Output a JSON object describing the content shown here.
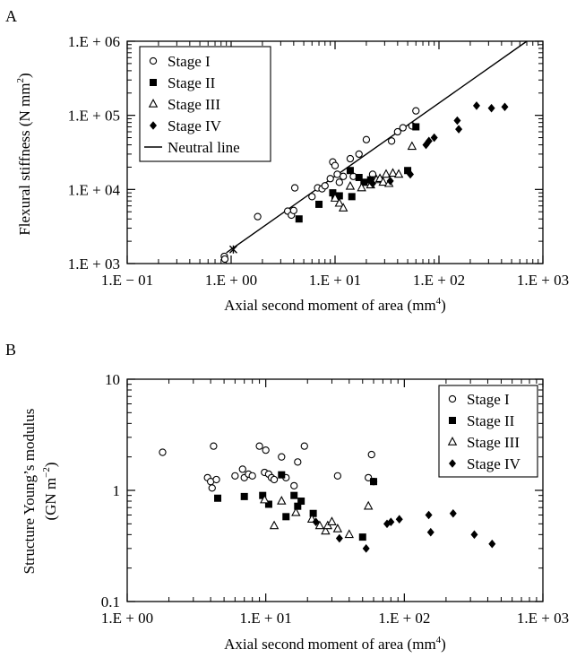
{
  "chart_data": [
    {
      "panel_label": "A",
      "type": "scatter",
      "scale": "log-log",
      "xlim": [
        0.1,
        1000
      ],
      "ylim": [
        1000,
        1000000
      ],
      "xticks": [
        0.1,
        1,
        10,
        100,
        1000
      ],
      "xtick_labels": [
        "1.E − 01",
        "1.E + 00",
        "1.E + 01",
        "1.E + 02",
        "1.E + 03"
      ],
      "yticks": [
        1000,
        10000,
        100000,
        1000000
      ],
      "ytick_labels": [
        "1.E + 03",
        "1.E + 04",
        "1.E + 05",
        "1.E + 06"
      ],
      "xlabel": "Axial second moment of area (mm",
      "xlabel_sup": "4",
      "xlabel_end": ")",
      "ylabel": "Flexural stiffness (N mm",
      "ylabel_sup": "2",
      "ylabel_end": ")",
      "legend_position": "top-left",
      "line": {
        "name": "Neutral line",
        "x": [
          0.9,
          700
        ],
        "y": [
          1400,
          1000000
        ]
      },
      "star_point": {
        "x": 1.05,
        "y": 1550
      },
      "series": [
        {
          "name": "Stage I",
          "marker": "circle-open",
          "points": [
            [
              0.86,
              1250
            ],
            [
              0.87,
              1150
            ],
            [
              1.8,
              4300
            ],
            [
              3.5,
              5100
            ],
            [
              3.8,
              4500
            ],
            [
              4,
              5200
            ],
            [
              4.1,
              10500
            ],
            [
              6,
              8000
            ],
            [
              6.8,
              10500
            ],
            [
              7.5,
              10200
            ],
            [
              8,
              11200
            ],
            [
              9,
              14000
            ],
            [
              9.5,
              23500
            ],
            [
              10,
              21000
            ],
            [
              10.5,
              16000
            ],
            [
              11,
              12500
            ],
            [
              12,
              15000
            ],
            [
              14,
              26000
            ],
            [
              15,
              15000
            ],
            [
              17,
              30000
            ],
            [
              20,
              47000
            ],
            [
              23,
              16000
            ],
            [
              35,
              45000
            ],
            [
              40,
              60000
            ],
            [
              45,
              68000
            ],
            [
              55,
              72000
            ],
            [
              60,
              115000
            ]
          ]
        },
        {
          "name": "Stage II",
          "marker": "square-filled",
          "points": [
            [
              4.5,
              4000
            ],
            [
              7,
              6300
            ],
            [
              9.5,
              9000
            ],
            [
              10,
              8200
            ],
            [
              11,
              8200
            ],
            [
              14,
              18000
            ],
            [
              14.5,
              8000
            ],
            [
              17,
              14500
            ],
            [
              19,
              12500
            ],
            [
              22,
              13500
            ],
            [
              50,
              18000
            ],
            [
              60,
              70000
            ]
          ]
        },
        {
          "name": "Stage III",
          "marker": "triangle-open",
          "points": [
            [
              10,
              7600
            ],
            [
              11,
              6500
            ],
            [
              12,
              5600
            ],
            [
              14,
              11000
            ],
            [
              18,
              10500
            ],
            [
              22,
              11500
            ],
            [
              25,
              13500
            ],
            [
              27,
              14000
            ],
            [
              29,
              12500
            ],
            [
              31,
              16000
            ],
            [
              33,
              12000
            ],
            [
              36,
              16500
            ],
            [
              41,
              16000
            ],
            [
              55,
              38000
            ]
          ]
        },
        {
          "name": "Stage IV",
          "marker": "diamond-filled",
          "points": [
            [
              23,
              12000
            ],
            [
              34,
              13000
            ],
            [
              53,
              16000
            ],
            [
              75,
              40000
            ],
            [
              80,
              45000
            ],
            [
              90,
              50000
            ],
            [
              150,
              85000
            ],
            [
              155,
              65000
            ],
            [
              230,
              135000
            ],
            [
              320,
              125000
            ],
            [
              430,
              130000
            ]
          ]
        }
      ]
    },
    {
      "panel_label": "B",
      "type": "scatter",
      "scale": "log-log",
      "xlim": [
        1,
        1000
      ],
      "ylim": [
        0.1,
        10
      ],
      "xticks": [
        1,
        10,
        100,
        1000
      ],
      "xtick_labels": [
        "1.E + 00",
        "1.E + 01",
        "1.E + 02",
        "1.E + 03"
      ],
      "yticks": [
        0.1,
        1,
        10
      ],
      "ytick_labels": [
        "0.1",
        "1",
        "10"
      ],
      "xlabel": "Axial second moment of area (mm",
      "xlabel_sup": "4",
      "xlabel_end": ")",
      "ylabel_line1": "Structure Young’s modulus",
      "ylabel_line2": "(GN m",
      "ylabel_line2_sup": "−2",
      "ylabel_line2_end": ")",
      "legend_position": "top-right",
      "series": [
        {
          "name": "Stage I",
          "marker": "circle-open",
          "points": [
            [
              1.8,
              2.2
            ],
            [
              3.8,
              1.3
            ],
            [
              4,
              1.2
            ],
            [
              4.1,
              1.05
            ],
            [
              4.2,
              2.5
            ],
            [
              4.4,
              1.25
            ],
            [
              6,
              1.35
            ],
            [
              6.8,
              1.55
            ],
            [
              7,
              1.3
            ],
            [
              7.5,
              1.4
            ],
            [
              8,
              1.35
            ],
            [
              9,
              2.5
            ],
            [
              9.8,
              1.45
            ],
            [
              10,
              2.3
            ],
            [
              10.5,
              1.4
            ],
            [
              11,
              1.3
            ],
            [
              11.5,
              1.25
            ],
            [
              13,
              2.0
            ],
            [
              14,
              1.3
            ],
            [
              16,
              1.1
            ],
            [
              17,
              1.8
            ],
            [
              19,
              2.5
            ],
            [
              33,
              1.35
            ],
            [
              55,
              1.3
            ],
            [
              58,
              2.1
            ],
            [
              60,
              1.2
            ]
          ]
        },
        {
          "name": "Stage II",
          "marker": "square-filled",
          "points": [
            [
              4.5,
              0.85
            ],
            [
              7,
              0.88
            ],
            [
              9.5,
              0.9
            ],
            [
              10.5,
              0.75
            ],
            [
              13,
              1.38
            ],
            [
              14,
              0.58
            ],
            [
              16,
              0.9
            ],
            [
              17,
              0.72
            ],
            [
              18,
              0.8
            ],
            [
              22,
              0.62
            ],
            [
              50,
              0.38
            ],
            [
              60,
              1.2
            ]
          ]
        },
        {
          "name": "Stage III",
          "marker": "triangle-open",
          "points": [
            [
              9.8,
              0.82
            ],
            [
              11.5,
              0.48
            ],
            [
              13,
              0.8
            ],
            [
              16.5,
              0.63
            ],
            [
              21.5,
              0.55
            ],
            [
              24.5,
              0.48
            ],
            [
              27,
              0.43
            ],
            [
              28,
              0.48
            ],
            [
              30,
              0.52
            ],
            [
              33,
              0.45
            ],
            [
              40,
              0.4
            ],
            [
              55,
              0.72
            ]
          ]
        },
        {
          "name": "Stage IV",
          "marker": "diamond-filled",
          "points": [
            [
              23,
              0.52
            ],
            [
              34,
              0.37
            ],
            [
              53,
              0.3
            ],
            [
              75,
              0.5
            ],
            [
              80,
              0.52
            ],
            [
              92,
              0.55
            ],
            [
              150,
              0.6
            ],
            [
              155,
              0.42
            ],
            [
              225,
              0.62
            ],
            [
              320,
              0.4
            ],
            [
              430,
              0.33
            ]
          ]
        }
      ]
    }
  ]
}
